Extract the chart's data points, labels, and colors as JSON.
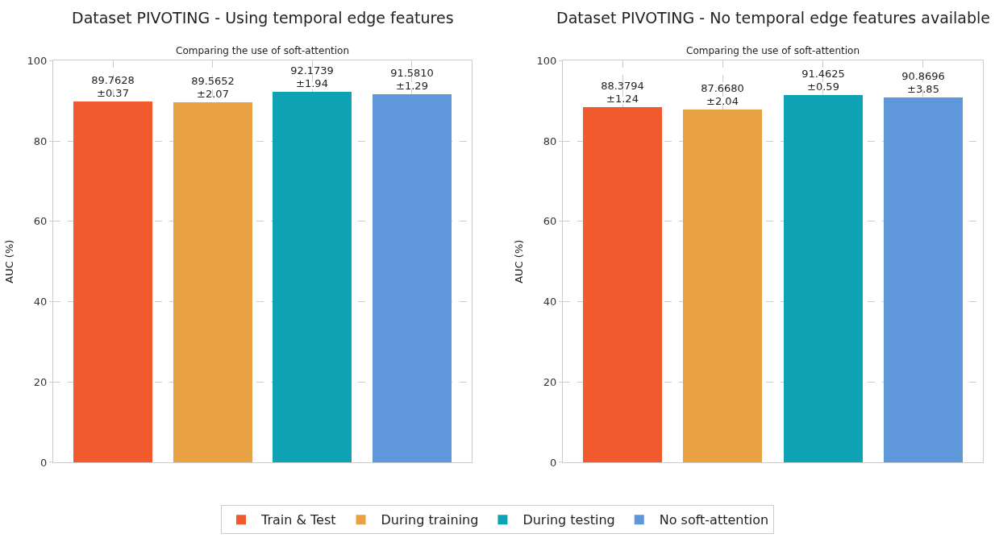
{
  "chart_data": [
    {
      "type": "bar",
      "title": "Dataset PIVOTING - Using temporal edge features",
      "subtitle": "Comparing the use of soft-attention",
      "ylabel": "AUC (%)",
      "categories": [
        null,
        null,
        null,
        null
      ],
      "ylim": [
        0,
        100
      ],
      "yticks": [
        0,
        20,
        40,
        60,
        80,
        100
      ],
      "grid": true,
      "legend": "bottom",
      "series": [
        {
          "name": "Train & Test",
          "color": "#f05a2c",
          "values": [
            89.7628,
            null,
            null,
            null
          ],
          "value_labels": [
            "89.7628\n±0.37",
            null,
            null,
            null
          ]
        },
        {
          "name": "During training",
          "color": "#e8a143",
          "values": [
            null,
            89.5652,
            null,
            null
          ],
          "value_labels": [
            null,
            "89.5652\n±2.07",
            null,
            null
          ]
        },
        {
          "name": "During testing",
          "color": "#0ea2b4",
          "values": [
            null,
            null,
            92.1739,
            null
          ],
          "value_labels": [
            null,
            null,
            "92.1739\n±1.94",
            null
          ]
        },
        {
          "name": "No soft-attention",
          "color": "#5e98da",
          "values": [
            null,
            null,
            null,
            91.581
          ],
          "value_labels": [
            null,
            null,
            null,
            "91.5810\n±1.29"
          ]
        }
      ]
    },
    {
      "type": "bar",
      "title": "Dataset PIVOTING - No temporal edge features available",
      "subtitle": "Comparing the use of soft-attention",
      "ylabel": "AUC (%)",
      "categories": [
        null,
        null,
        null,
        null
      ],
      "ylim": [
        0,
        100
      ],
      "yticks": [
        0,
        20,
        40,
        60,
        80,
        100
      ],
      "grid": true,
      "legend": "bottom",
      "series": [
        {
          "name": "Train & Test",
          "color": "#f05a2c",
          "values": [
            88.3794,
            null,
            null,
            null
          ],
          "value_labels": [
            "88.3794\n±1.24",
            null,
            null,
            null
          ]
        },
        {
          "name": "During training",
          "color": "#e8a143",
          "values": [
            null,
            87.668,
            null,
            null
          ],
          "value_labels": [
            null,
            "87.6680\n±2.04",
            null,
            null
          ]
        },
        {
          "name": "During testing",
          "color": "#0ea2b4",
          "values": [
            null,
            null,
            91.4625,
            null
          ],
          "value_labels": [
            null,
            null,
            "91.4625\n±0.59",
            null
          ]
        },
        {
          "name": "No soft-attention",
          "color": "#5e98da",
          "values": [
            null,
            null,
            null,
            90.8696
          ],
          "value_labels": [
            null,
            null,
            null,
            "90.8696\n±3.85"
          ]
        }
      ]
    }
  ]
}
